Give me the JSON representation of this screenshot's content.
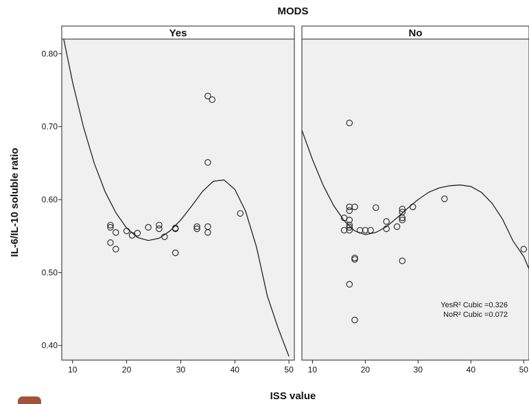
{
  "chart_data": {
    "type": "scatter",
    "title": "MODS",
    "xlabel": "ISS value",
    "ylabel": "IL-6/IL-10 soluble ratio",
    "xlim": [
      8,
      51
    ],
    "ylim": [
      0.38,
      0.82
    ],
    "x_ticks": [
      10,
      20,
      30,
      40,
      50
    ],
    "y_ticks": [
      0.4,
      0.5,
      0.6,
      0.7,
      0.8
    ],
    "y_tick_labels": [
      "0.40",
      "0.50",
      "0.60",
      "0.70",
      "0.80"
    ],
    "background_color": "#f0f0f0",
    "grid": false,
    "fit": "cubic",
    "annotation": [
      "YesR² Cubic =0.326",
      "NoR² Cubic =0.072"
    ],
    "panels": [
      {
        "name": "Yes",
        "points": [
          [
            17,
            0.565
          ],
          [
            17,
            0.562
          ],
          [
            17,
            0.541
          ],
          [
            18,
            0.532
          ],
          [
            18,
            0.555
          ],
          [
            20,
            0.557
          ],
          [
            21,
            0.551
          ],
          [
            22,
            0.554
          ],
          [
            24,
            0.562
          ],
          [
            26,
            0.565
          ],
          [
            26,
            0.56
          ],
          [
            27,
            0.549
          ],
          [
            29,
            0.561
          ],
          [
            29,
            0.56
          ],
          [
            29,
            0.527
          ],
          [
            33,
            0.563
          ],
          [
            33,
            0.56
          ],
          [
            35,
            0.742
          ],
          [
            35.8,
            0.737
          ],
          [
            35,
            0.651
          ],
          [
            35,
            0.563
          ],
          [
            35,
            0.555
          ],
          [
            41,
            0.581
          ]
        ],
        "fit_curve": {
          "x": [
            8,
            10,
            12,
            14,
            16,
            18,
            20,
            22,
            24,
            26,
            28,
            30,
            32,
            34,
            36,
            38,
            40,
            42,
            44,
            46,
            48,
            50
          ],
          "y": [
            0.833,
            0.761,
            0.7,
            0.65,
            0.611,
            0.582,
            0.561,
            0.548,
            0.544,
            0.547,
            0.557,
            0.572,
            0.591,
            0.611,
            0.625,
            0.627,
            0.614,
            0.584,
            0.535,
            0.468,
            0.424,
            0.385
          ]
        }
      },
      {
        "name": "No",
        "points": [
          [
            17,
            0.705
          ],
          [
            16,
            0.575
          ],
          [
            16,
            0.558
          ],
          [
            17,
            0.59
          ],
          [
            17,
            0.585
          ],
          [
            17,
            0.572
          ],
          [
            17,
            0.565
          ],
          [
            17,
            0.562
          ],
          [
            17,
            0.558
          ],
          [
            17,
            0.484
          ],
          [
            18,
            0.59
          ],
          [
            18,
            0.52
          ],
          [
            18,
            0.518
          ],
          [
            18,
            0.435
          ],
          [
            19,
            0.558
          ],
          [
            20,
            0.558
          ],
          [
            21,
            0.558
          ],
          [
            22,
            0.589
          ],
          [
            24,
            0.57
          ],
          [
            24,
            0.56
          ],
          [
            26,
            0.563
          ],
          [
            27,
            0.587
          ],
          [
            27,
            0.583
          ],
          [
            27,
            0.575
          ],
          [
            27,
            0.572
          ],
          [
            27,
            0.516
          ],
          [
            29,
            0.59
          ],
          [
            35,
            0.601
          ],
          [
            50,
            0.532
          ]
        ],
        "fit_curve": {
          "x": [
            8,
            10,
            12,
            14,
            16,
            18,
            20,
            22,
            24,
            26,
            28,
            30,
            32,
            34,
            36,
            38,
            40,
            42,
            44,
            46,
            48,
            50,
            51
          ],
          "y": [
            0.695,
            0.655,
            0.62,
            0.592,
            0.571,
            0.557,
            0.552,
            0.555,
            0.563,
            0.575,
            0.588,
            0.6,
            0.61,
            0.616,
            0.619,
            0.62,
            0.618,
            0.61,
            0.595,
            0.573,
            0.543,
            0.522,
            0.505
          ]
        }
      }
    ]
  }
}
